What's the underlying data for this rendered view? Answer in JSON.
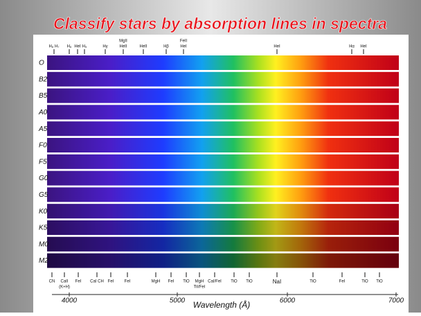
{
  "title": "Classify stars by absorption lines in spectra",
  "spectral_classes": [
    "O",
    "B2",
    "B5",
    "A0",
    "A5",
    "F0",
    "F5",
    "G0",
    "G5",
    "K0",
    "K5",
    "M0",
    "M2"
  ],
  "top_lines": [
    "H₈ H₇",
    "H₆",
    "HeI",
    "H₅",
    "Hγ",
    "MgII",
    "HeII",
    "HeII",
    "Hβ",
    "FeII",
    "HeI",
    "HeI",
    "Hα",
    "HeI"
  ],
  "bottom_lines": [
    "CN",
    "CaII",
    "(K+H)",
    "FeI",
    "CaI CH",
    "FeI",
    "FeI",
    "MgH",
    "FeI",
    "TiO",
    "MgH",
    "TiI/FeI",
    "CaI/FeI",
    "TiO",
    "TiO",
    "NaI",
    "TiO",
    "FeI",
    "TiO",
    "TiO"
  ],
  "axis": {
    "ticks": [
      "4000",
      "5000",
      "6000",
      "7000"
    ],
    "label": "Wavelength (Å)"
  }
}
